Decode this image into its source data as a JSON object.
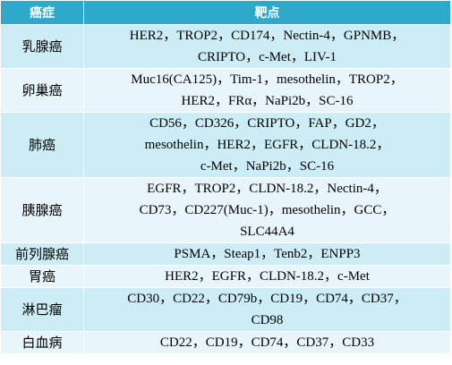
{
  "header": {
    "col1": "癌症",
    "col2": "靶点"
  },
  "rows": [
    {
      "cancer": "乳腺癌",
      "targets": [
        "HER2，TROP2，CD174，Nectin-4，GPNMB，",
        "CRIPTO，c-Met，LIV-1"
      ]
    },
    {
      "cancer": "卵巢癌",
      "targets": [
        "Muc16(CA125)，Tim-1，mesothelin，TROP2，",
        "HER2，FRα，NaPi2b，SC-16"
      ]
    },
    {
      "cancer": "肺癌",
      "targets": [
        "CD56，CD326，CRIPTO，FAP，GD2，",
        "mesothelin，HER2，EGFR，CLDN-18.2，",
        "c-Met，NaPi2b，SC-16"
      ]
    },
    {
      "cancer": "胰腺癌",
      "targets": [
        "EGFR，TROP2，CLDN-18.2，Nectin-4，",
        "CD73，CD227(Muc-1)，mesothelin，GCC，",
        "SLC44A4"
      ]
    },
    {
      "cancer": "前列腺癌",
      "targets": [
        "PSMA，Steap1，Tenb2，ENPP3"
      ]
    },
    {
      "cancer": "胃癌",
      "targets": [
        "HER2，EGFR，CLDN-18.2，c-Met"
      ]
    },
    {
      "cancer": "淋巴瘤",
      "targets": [
        "CD30，CD22，CD79b，CD19，CD74，CD37，",
        "CD98"
      ]
    },
    {
      "cancer": "白血病",
      "targets": [
        "CD22，CD19，CD74，CD37，CD33"
      ]
    }
  ]
}
